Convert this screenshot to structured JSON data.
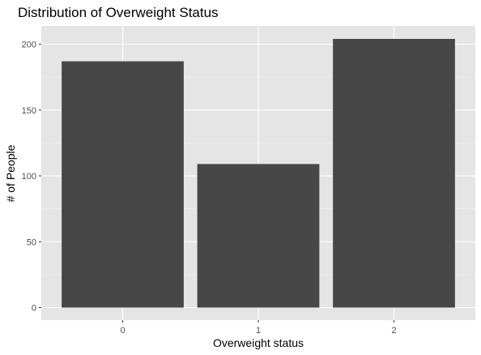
{
  "chart_data": {
    "type": "bar",
    "title": "Distribution of Overweight Status",
    "xlabel": "Overweight status",
    "ylabel": "# of People",
    "categories": [
      "0",
      "1",
      "2"
    ],
    "values": [
      187,
      109,
      204
    ],
    "ylim": [
      0,
      214
    ],
    "yticks": [
      0,
      50,
      100,
      150,
      200
    ],
    "ytick_labels": [
      "0",
      "50",
      "100",
      "150",
      "200"
    ],
    "grid": true,
    "legend": "none",
    "colors": {
      "panel_background": "#e5e5e5",
      "grid_major": "#ffffff",
      "bar_fill": "#474747",
      "tick_text": "#4d4d4d",
      "tick_mark": "#333333"
    }
  }
}
